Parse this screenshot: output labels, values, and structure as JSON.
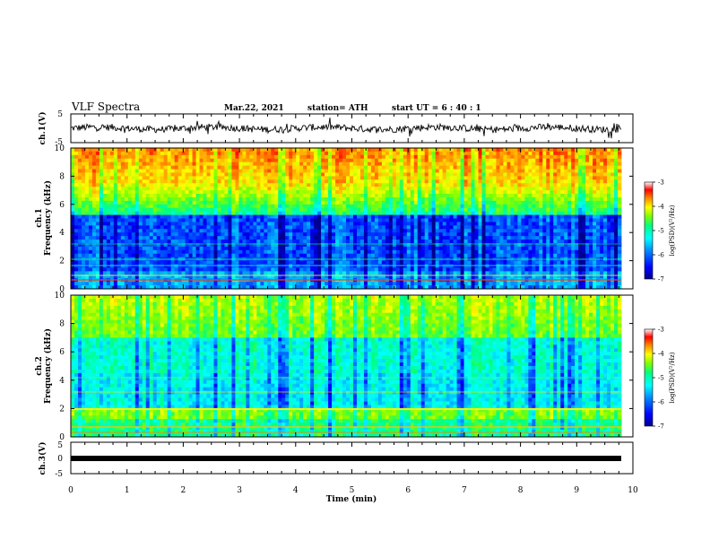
{
  "header": {
    "title": "VLF Spectra",
    "date": "Mar.22, 2021",
    "station": "station= ATH",
    "start": "start UT =  6 : 40 : 1"
  },
  "colors": {
    "colormap": [
      "#000090",
      "#0000ff",
      "#0090ff",
      "#00ffff",
      "#00ff80",
      "#80ff00",
      "#ffff00",
      "#ff8000",
      "#ff0000",
      "#ffffff"
    ],
    "trace": "#000000"
  },
  "chart_data": [
    {
      "id": "ch1-waveform",
      "type": "line",
      "ylabel": "ch.1(V)",
      "ylim": [
        -5,
        5
      ],
      "yticks": [
        "5",
        "-5"
      ],
      "xlim": [
        0,
        10
      ]
    },
    {
      "id": "ch1-spectrogram",
      "type": "heatmap",
      "ylabel_top": "ch.1",
      "ylabel": "Frequency  (kHz)",
      "ylim": [
        0,
        10
      ],
      "yticks": [
        "0",
        "2",
        "4",
        "6",
        "8",
        "10"
      ],
      "xlim": [
        0,
        10
      ],
      "colorbar": {
        "label": "log(PSD)(V²/Hz)",
        "range": [
          -7,
          -3
        ],
        "ticks": [
          "-3",
          "-4",
          "-5",
          "-6",
          "-7"
        ]
      }
    },
    {
      "id": "ch2-spectrogram",
      "type": "heatmap",
      "ylabel_top": "ch.2",
      "ylabel": "Frequency  (kHz)",
      "ylim": [
        0,
        10
      ],
      "yticks": [
        "0",
        "2",
        "4",
        "6",
        "8",
        "10"
      ],
      "xlim": [
        0,
        10
      ],
      "colorbar": {
        "label": "log(PSD)(V²/Hz)",
        "range": [
          -7,
          -3
        ],
        "ticks": [
          "-3",
          "-4",
          "-5",
          "-6",
          "-7"
        ]
      }
    },
    {
      "id": "ch3-waveform",
      "type": "line",
      "ylabel": "ch.3(V)",
      "ylim": [
        -5,
        5
      ],
      "yticks": [
        "5",
        "0",
        "-5"
      ],
      "xlim": [
        0,
        10
      ],
      "xlabel": "Time  (min)",
      "xticks": [
        "0",
        "1",
        "2",
        "3",
        "4",
        "5",
        "6",
        "7",
        "8",
        "9",
        "10"
      ]
    }
  ]
}
